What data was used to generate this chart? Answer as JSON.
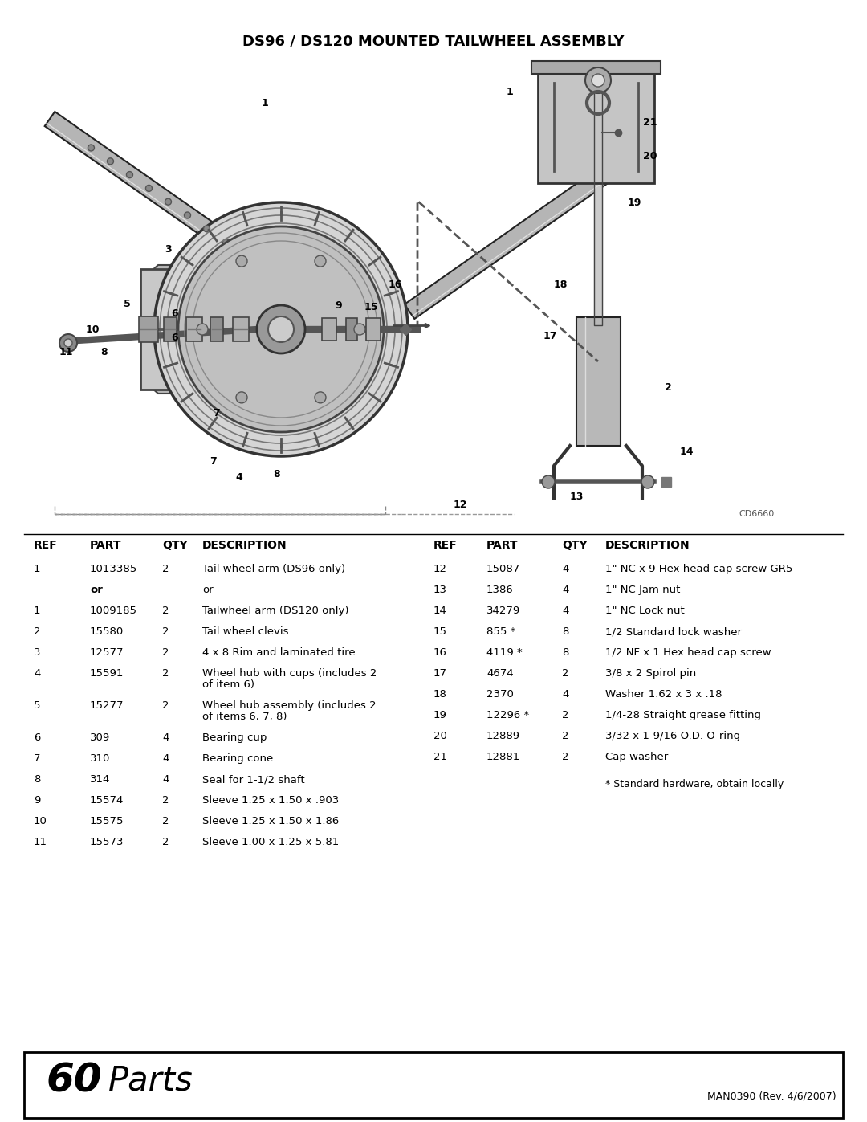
{
  "title": "DS96 / DS120 MOUNTED TAILWHEEL ASSEMBLY",
  "title_fontsize": 13,
  "bg_color": "#ffffff",
  "diagram_credit": "CD6660",
  "left_parts": [
    {
      "ref": "1",
      "part": "1013385",
      "qty": "2",
      "desc": "Tail wheel arm (DS96 only)",
      "wrap": false
    },
    {
      "ref": "",
      "part": "or",
      "qty": "",
      "desc": "or",
      "wrap": false,
      "bold_part": true
    },
    {
      "ref": "1",
      "part": "1009185",
      "qty": "2",
      "desc": "Tailwheel arm (DS120 only)",
      "wrap": false
    },
    {
      "ref": "2",
      "part": "15580",
      "qty": "2",
      "desc": "Tail wheel clevis",
      "wrap": false
    },
    {
      "ref": "3",
      "part": "12577",
      "qty": "2",
      "desc": "4 x 8 Rim and laminated tire",
      "wrap": false
    },
    {
      "ref": "4",
      "part": "15591",
      "qty": "2",
      "desc": "Wheel hub with cups (includes 2 of item 6)",
      "wrap": true
    },
    {
      "ref": "5",
      "part": "15277",
      "qty": "2",
      "desc": "Wheel hub assembly (includes 2 of items 6, 7, 8)",
      "wrap": true
    },
    {
      "ref": "6",
      "part": "309",
      "qty": "4",
      "desc": "Bearing cup",
      "wrap": false
    },
    {
      "ref": "7",
      "part": "310",
      "qty": "4",
      "desc": "Bearing cone",
      "wrap": false
    },
    {
      "ref": "8",
      "part": "314",
      "qty": "4",
      "desc": "Seal for 1-1/2 shaft",
      "wrap": false
    },
    {
      "ref": "9",
      "part": "15574",
      "qty": "2",
      "desc": "Sleeve 1.25 x 1.50 x .903",
      "wrap": false
    },
    {
      "ref": "10",
      "part": "15575",
      "qty": "2",
      "desc": "Sleeve 1.25 x 1.50 x 1.86",
      "wrap": false
    },
    {
      "ref": "11",
      "part": "15573",
      "qty": "2",
      "desc": "Sleeve 1.00 x 1.25 x 5.81",
      "wrap": false
    }
  ],
  "right_parts": [
    {
      "ref": "12",
      "part": "15087",
      "qty": "4",
      "desc": "1\" NC x 9 Hex head cap screw GR5"
    },
    {
      "ref": "13",
      "part": "1386",
      "qty": "4",
      "desc": "1\" NC Jam nut"
    },
    {
      "ref": "14",
      "part": "34279",
      "qty": "4",
      "desc": "1\" NC Lock nut"
    },
    {
      "ref": "15",
      "part": "855 *",
      "qty": "8",
      "desc": "1/2 Standard lock washer"
    },
    {
      "ref": "16",
      "part": "4119 *",
      "qty": "8",
      "desc": "1/2 NF x 1 Hex head cap screw"
    },
    {
      "ref": "17",
      "part": "4674",
      "qty": "2",
      "desc": "3/8 x 2 Spirol pin"
    },
    {
      "ref": "18",
      "part": "2370",
      "qty": "4",
      "desc": "Washer 1.62 x 3 x .18"
    },
    {
      "ref": "19",
      "part": "12296 *",
      "qty": "2",
      "desc": "1/4-28 Straight grease fitting"
    },
    {
      "ref": "20",
      "part": "12889",
      "qty": "2",
      "desc": "3/32 x 1-9/16 O.D. O-ring"
    },
    {
      "ref": "21",
      "part": "12881",
      "qty": "2",
      "desc": "Cap washer"
    }
  ],
  "footnote": "* Standard hardware, obtain locally",
  "footer_number": "60",
  "footer_text": "Parts",
  "footer_ref": "MAN0390 (Rev. 4/6/2007)"
}
